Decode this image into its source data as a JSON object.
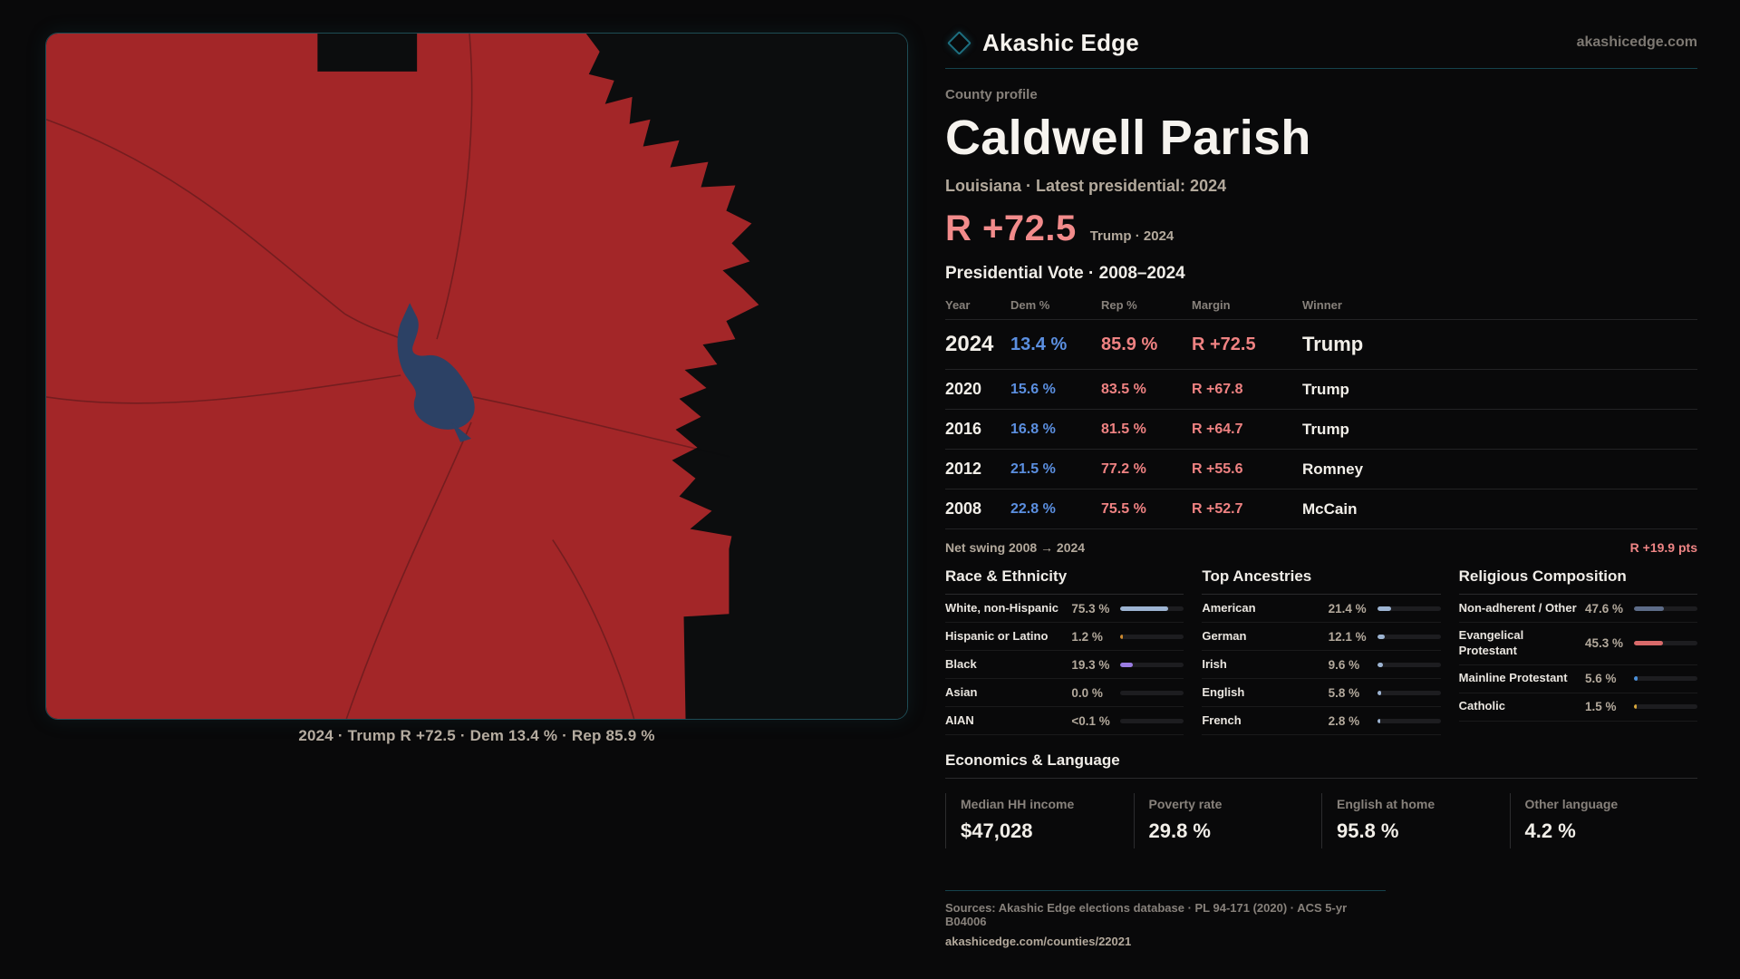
{
  "brand": {
    "logo_icon": "diamond",
    "name": "Akashic Edge",
    "domain": "akashicedge.com"
  },
  "profile": {
    "kicker": "County profile",
    "title": "Caldwell Parish",
    "subtitle": "Louisiana · Latest presidential: 2024",
    "headline_margin": "R +72.5",
    "headline_note": "Trump · 2024"
  },
  "map": {
    "caption": "2024 · Trump R +72.5 · Dem 13.4 % · Rep 85.9 %",
    "county_fill": "#a32628",
    "lake_fill": "#2c4165",
    "background": "#0c0d0e"
  },
  "vote_table": {
    "title": "Presidential Vote · 2008–2024",
    "columns": [
      "Year",
      "Dem %",
      "Rep %",
      "Margin",
      "Winner"
    ],
    "rows": [
      {
        "year": "2024",
        "dem": "13.4 %",
        "rep": "85.9 %",
        "margin": "R +72.5",
        "winner": "Trump",
        "emphasis": true
      },
      {
        "year": "2020",
        "dem": "15.6 %",
        "rep": "83.5 %",
        "margin": "R +67.8",
        "winner": "Trump",
        "emphasis": false
      },
      {
        "year": "2016",
        "dem": "16.8 %",
        "rep": "81.5 %",
        "margin": "R +64.7",
        "winner": "Trump",
        "emphasis": false
      },
      {
        "year": "2012",
        "dem": "21.5 %",
        "rep": "77.2 %",
        "margin": "R +55.6",
        "winner": "Romney",
        "emphasis": false
      },
      {
        "year": "2008",
        "dem": "22.8 %",
        "rep": "75.5 %",
        "margin": "R +52.7",
        "winner": "McCain",
        "emphasis": false
      }
    ],
    "net_swing_label": "Net swing 2008 → 2024",
    "net_swing_value": "R +19.9 pts"
  },
  "demographics": [
    {
      "id": "race",
      "title": "Race & Ethnicity",
      "rows": [
        {
          "label": "White, non-Hispanic",
          "value": "75.3 %",
          "pct": 75.3,
          "color": "#9db4d2"
        },
        {
          "label": "Hispanic or Latino",
          "value": "1.2 %",
          "pct": 1.2,
          "color": "#cd8a2f"
        },
        {
          "label": "Black",
          "value": "19.3 %",
          "pct": 19.3,
          "color": "#9a7ce2"
        },
        {
          "label": "Asian",
          "value": "0.0 %",
          "pct": 0,
          "color": "#9db4d2"
        },
        {
          "label": "AIAN",
          "value": "<0.1 %",
          "pct": 0,
          "color": "#9db4d2"
        }
      ]
    },
    {
      "id": "ancestries",
      "title": "Top Ancestries",
      "rows": [
        {
          "label": "American",
          "value": "21.4 %",
          "pct": 21.4,
          "color": "#9db4d2"
        },
        {
          "label": "German",
          "value": "12.1 %",
          "pct": 12.1,
          "color": "#9db4d2"
        },
        {
          "label": "Irish",
          "value": "9.6 %",
          "pct": 9.6,
          "color": "#9db4d2"
        },
        {
          "label": "English",
          "value": "5.8 %",
          "pct": 5.8,
          "color": "#9db4d2"
        },
        {
          "label": "French",
          "value": "2.8 %",
          "pct": 2.8,
          "color": "#9db4d2"
        }
      ]
    },
    {
      "id": "religion",
      "title": "Religious Composition",
      "rows": [
        {
          "label": "Non-adherent / Other",
          "value": "47.6 %",
          "pct": 47.6,
          "color": "#5d6c88"
        },
        {
          "label": "Evangelical Protestant",
          "value": "45.3 %",
          "pct": 45.3,
          "color": "#d96a6a"
        },
        {
          "label": "Mainline Protestant",
          "value": "5.6 %",
          "pct": 5.6,
          "color": "#4a8fd9"
        },
        {
          "label": "Catholic",
          "value": "1.5 %",
          "pct": 1.5,
          "color": "#d9a83c"
        }
      ]
    }
  ],
  "economics": {
    "title": "Economics & Language",
    "stats": [
      {
        "label": "Median HH income",
        "value": "$47,028"
      },
      {
        "label": "Poverty rate",
        "value": "29.8 %"
      },
      {
        "label": "English at home",
        "value": "95.8 %"
      },
      {
        "label": "Other language",
        "value": "4.2 %"
      }
    ]
  },
  "footer": {
    "sources": "Sources: Akashic Edge elections database · PL 94-171 (2020) · ACS 5-yr B04006",
    "permalink": "akashicedge.com/counties/22021"
  },
  "colors": {
    "dem_blue": "#5b8fe0",
    "rep_red": "#ef8282",
    "accent_teal": "#1d6f80"
  }
}
